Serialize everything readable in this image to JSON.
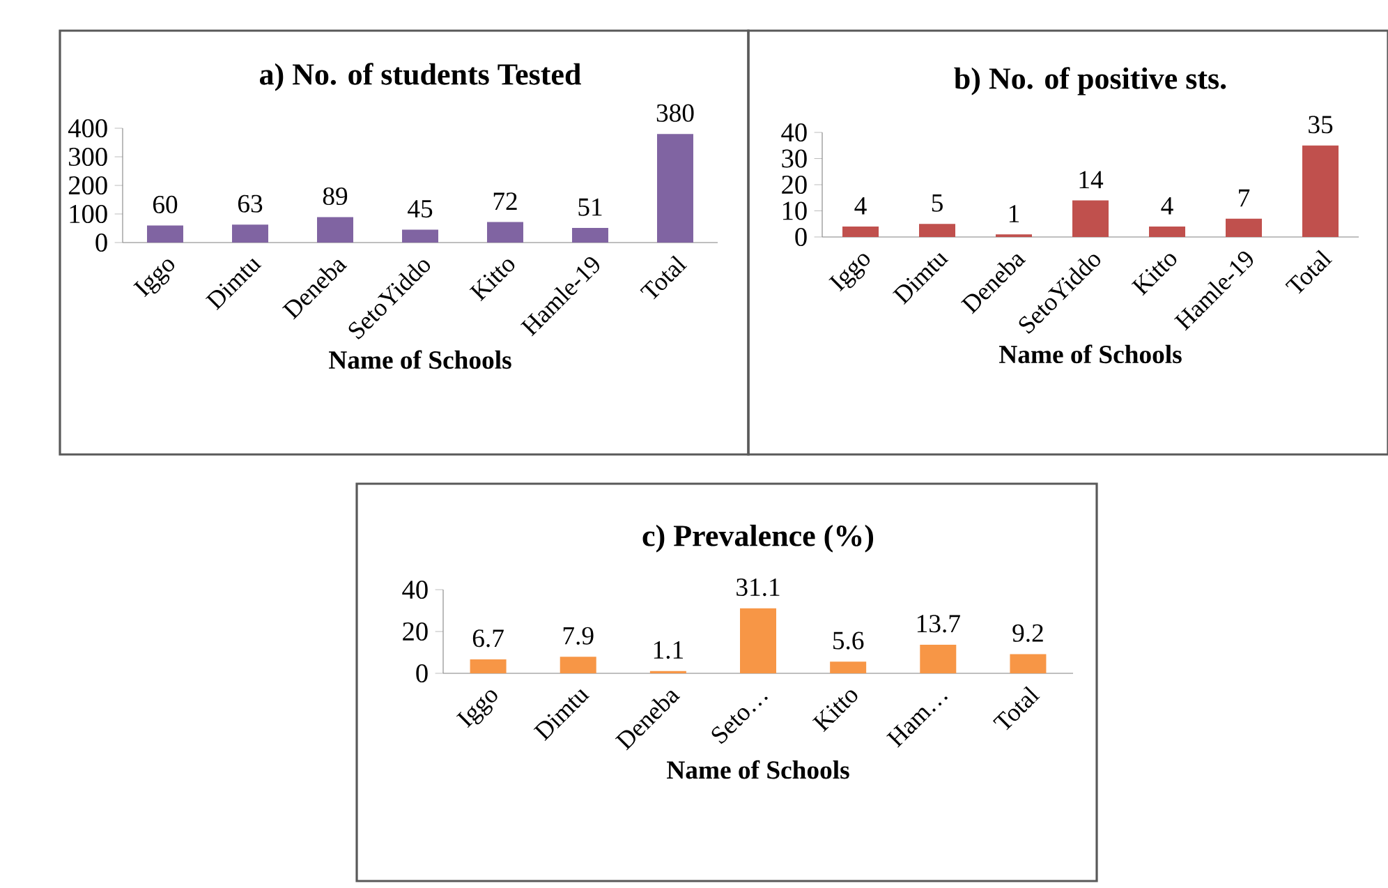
{
  "chart_data": [
    {
      "type": "bar",
      "title": "a) No. of students Tested",
      "xlabel": "Name of Schools",
      "categories": [
        "Iggo",
        "Dimtu",
        "Deneba",
        "SetoYiddo",
        "Kitto",
        "Hamle-19",
        "Total"
      ],
      "values": [
        60,
        63,
        89,
        45,
        72,
        51,
        380
      ],
      "color": "#8064a2",
      "ylim": [
        0,
        400
      ],
      "yticks": [
        0,
        100,
        200,
        300,
        400
      ],
      "data_labels": true
    },
    {
      "type": "bar",
      "title": "b) No. of positive sts.",
      "xlabel": "Name of Schools",
      "categories": [
        "Iggo",
        "Dimtu",
        "Deneba",
        "SetoYiddo",
        "Kitto",
        "Hamle-19",
        "Total"
      ],
      "values": [
        4,
        5,
        1,
        14,
        4,
        7,
        35
      ],
      "color": "#c0504d",
      "ylim": [
        0,
        40
      ],
      "yticks": [
        0,
        10,
        20,
        30,
        40
      ],
      "data_labels": true
    },
    {
      "type": "bar",
      "title": "c) Prevalence (%)",
      "xlabel": "Name of Schools",
      "categories": [
        "Iggo",
        "Dimtu",
        "Deneba",
        "Seto…",
        "Kitto",
        "Ham…",
        "Total"
      ],
      "values": [
        6.7,
        7.9,
        1.1,
        31.1,
        5.6,
        13.7,
        9.2
      ],
      "color": "#f79646",
      "ylim": [
        0,
        40
      ],
      "yticks": [
        0,
        20,
        40
      ],
      "data_labels": true
    }
  ]
}
